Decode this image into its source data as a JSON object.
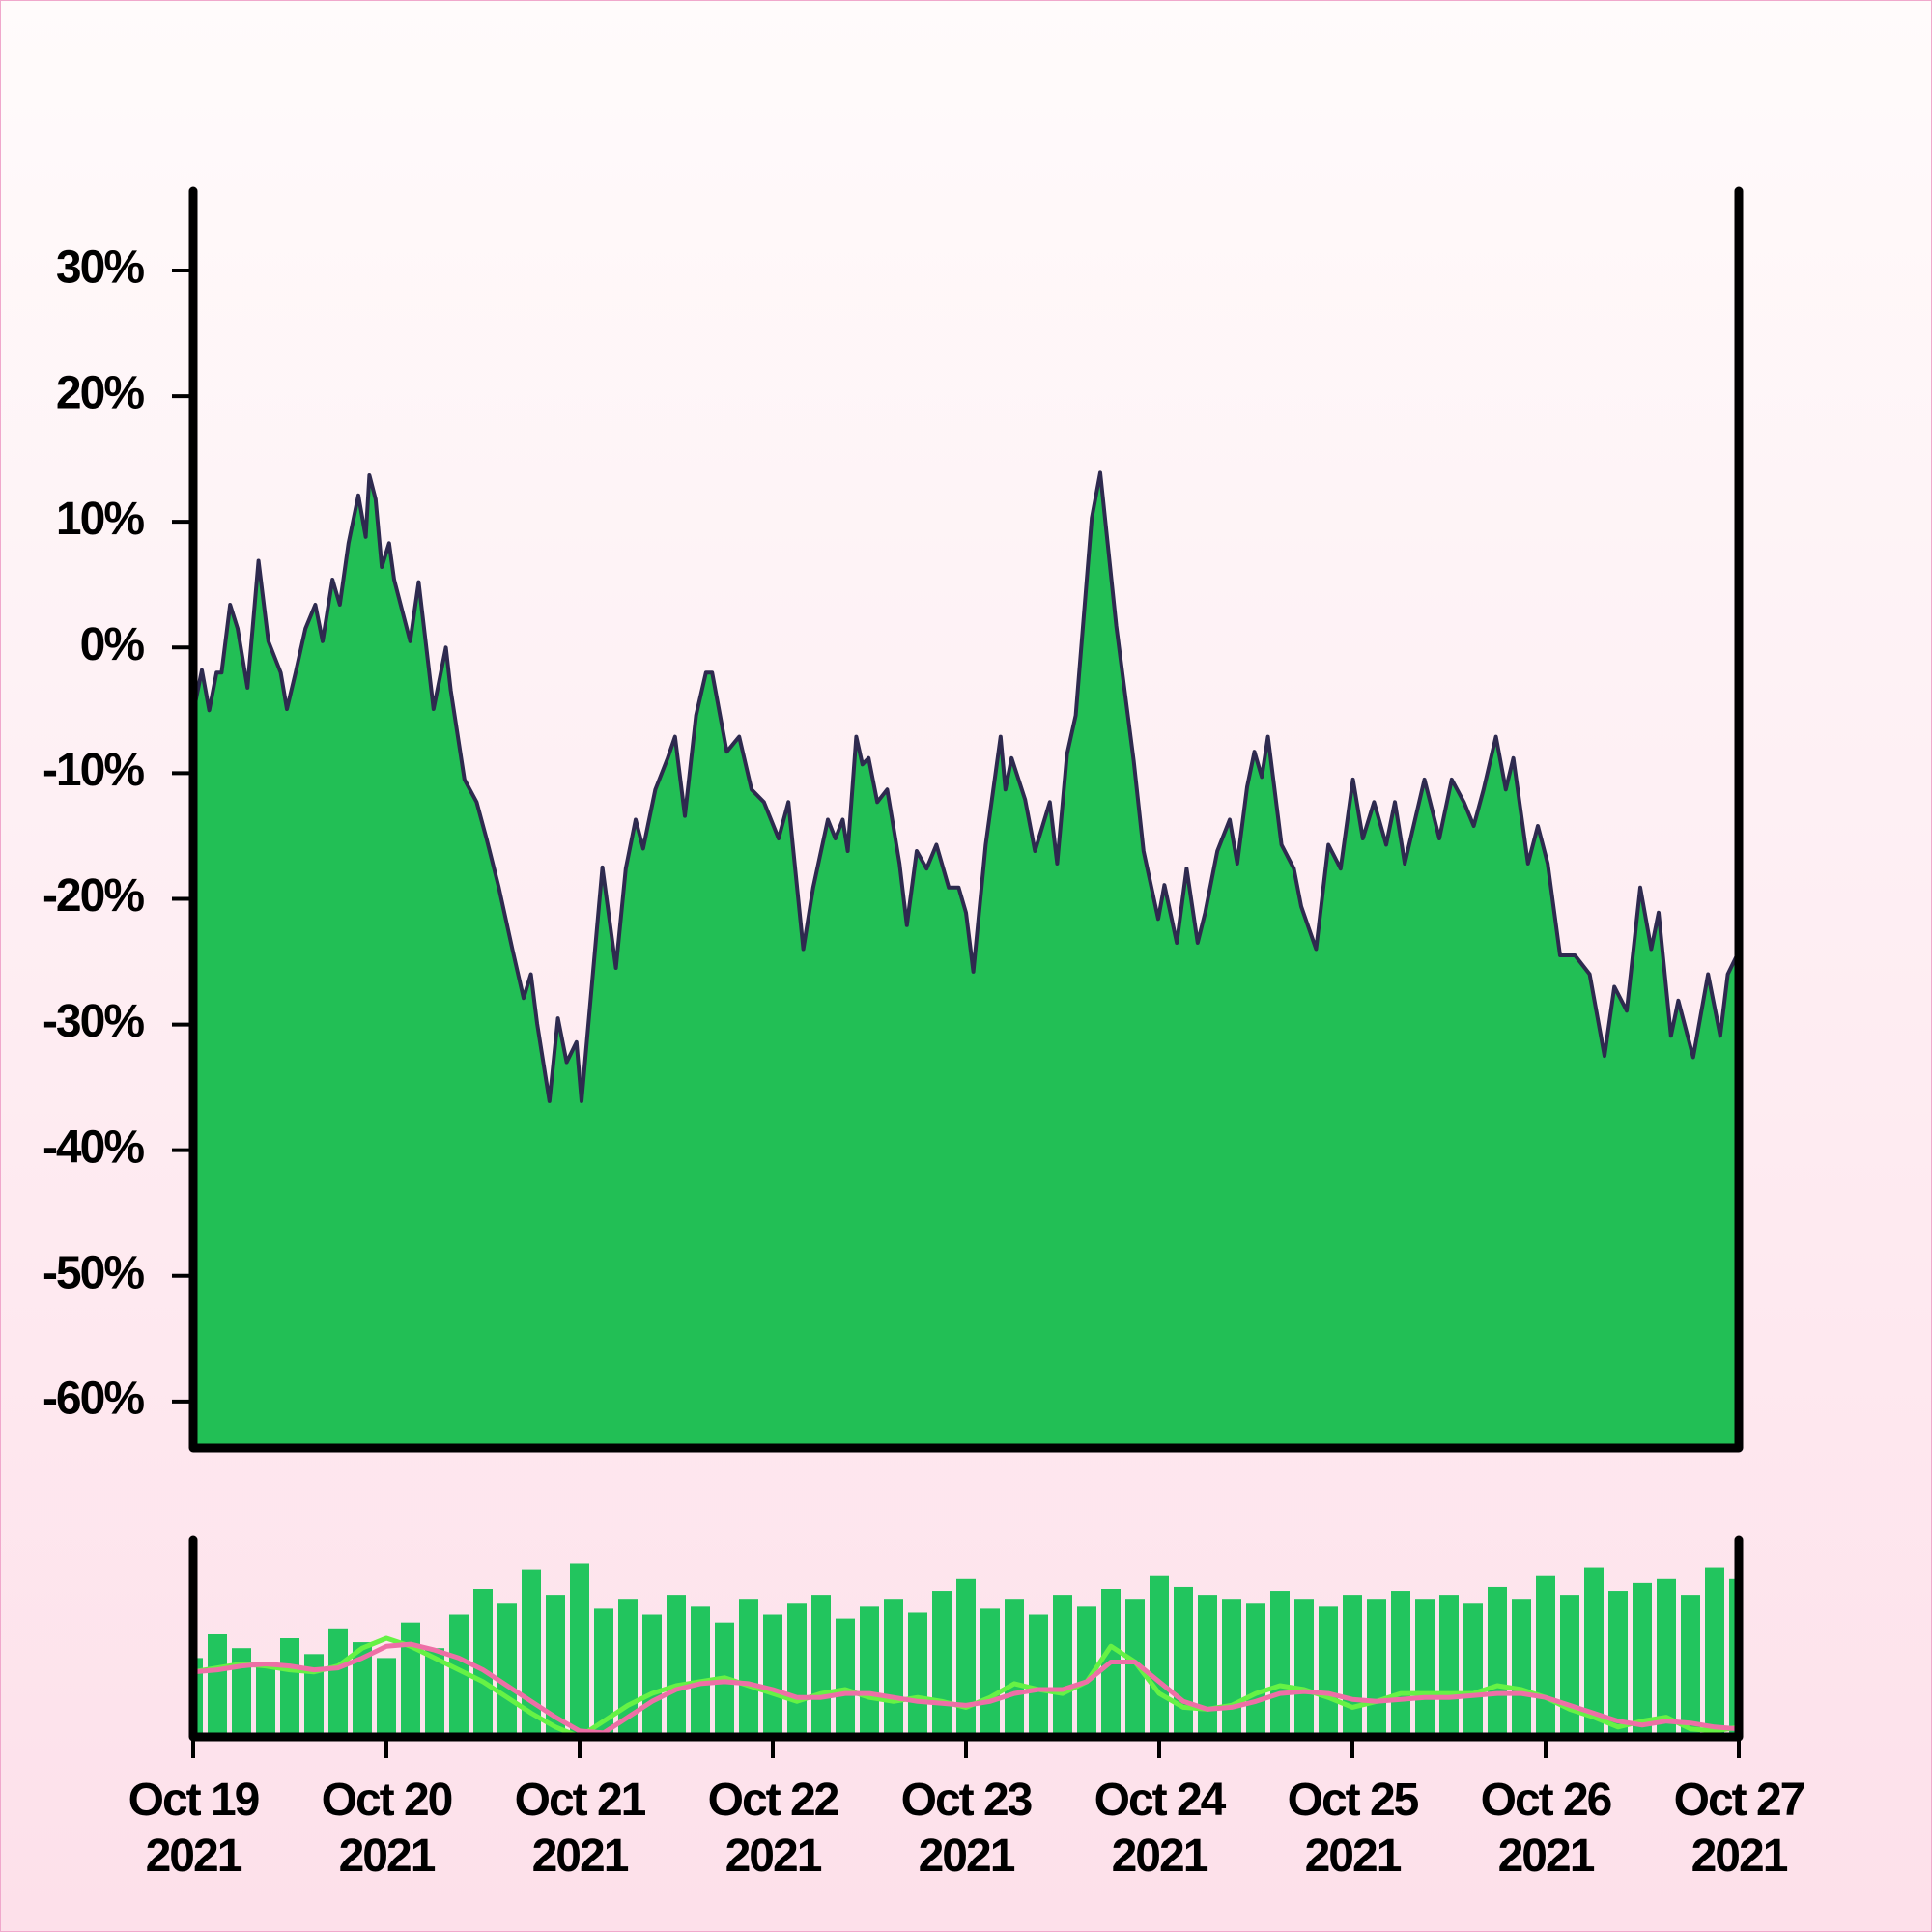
{
  "chart_data": [
    {
      "type": "area",
      "x": [
        0,
        0.045,
        0.083,
        0.121,
        0.147,
        0.191,
        0.23,
        0.281,
        0.338,
        0.389,
        0.453,
        0.485,
        0.53,
        0.581,
        0.632,
        0.67,
        0.721,
        0.759,
        0.804,
        0.855,
        0.893,
        0.912,
        0.944,
        0.976,
        1.014,
        1.04,
        1.123,
        1.167,
        1.244,
        1.308,
        1.333,
        1.404,
        1.467,
        1.518,
        1.582,
        1.652,
        1.71,
        1.748,
        1.78,
        1.844,
        1.888,
        1.933,
        1.984,
        2.01,
        2.118,
        2.188,
        2.239,
        2.29,
        2.329,
        2.392,
        2.456,
        2.494,
        2.545,
        2.603,
        2.654,
        2.686,
        2.762,
        2.826,
        2.89,
        2.954,
        3.03,
        3.081,
        3.158,
        3.209,
        3.285,
        3.324,
        3.362,
        3.388,
        3.432,
        3.464,
        3.496,
        3.541,
        3.592,
        3.656,
        3.694,
        3.745,
        3.796,
        3.847,
        3.911,
        3.962,
        4,
        4.038,
        4.102,
        4.179,
        4.204,
        4.236,
        4.306,
        4.357,
        4.434,
        4.472,
        4.523,
        4.568,
        4.651,
        4.695,
        4.778,
        4.868,
        4.919,
        4.995,
        5.027,
        5.091,
        5.142,
        5.199,
        5.238,
        5.301,
        5.365,
        5.404,
        5.455,
        5.493,
        5.531,
        5.563,
        5.633,
        5.697,
        5.735,
        5.812,
        5.876,
        5.939,
        6.003,
        6.054,
        6.112,
        6.175,
        6.22,
        6.271,
        6.373,
        6.45,
        6.514,
        6.577,
        6.628,
        6.679,
        6.743,
        6.794,
        6.833,
        6.909,
        6.96,
        7.011,
        7.075,
        7.152,
        7.228,
        7.305,
        7.356,
        7.42,
        7.49,
        7.547,
        7.585,
        7.649,
        7.687,
        7.764,
        7.841,
        7.904,
        7.943,
        8
      ],
      "values": [
        -5.2,
        -1.8,
        -5,
        -2,
        -2,
        3.4,
        1.5,
        -3.2,
        6.9,
        0.5,
        -2,
        -4.9,
        -2,
        1.5,
        3.4,
        0.5,
        5.4,
        3.4,
        8.3,
        12.1,
        8.8,
        13.7,
        11.8,
        6.4,
        8.3,
        5.4,
        0.5,
        5.2,
        -4.9,
        0,
        -3.4,
        -10.5,
        -12.3,
        -15.2,
        -19.1,
        -24,
        -27.9,
        -26,
        -29.9,
        -36.1,
        -29.5,
        -33,
        -31.4,
        -36.1,
        -17.5,
        -25.5,
        -17.6,
        -13.7,
        -16,
        -11.3,
        -8.8,
        -7.1,
        -13.4,
        -5.4,
        -2,
        -2,
        -8.3,
        -7.1,
        -11.3,
        -12.3,
        -15.2,
        -12.3,
        -24,
        -19.1,
        -13.7,
        -15.2,
        -13.7,
        -16.2,
        -7.1,
        -9.3,
        -8.8,
        -12.3,
        -11.3,
        -17.2,
        -22.1,
        -16.2,
        -17.6,
        -15.7,
        -19.1,
        -19.1,
        -21.1,
        -25.8,
        -15.7,
        -7.1,
        -11.3,
        -8.8,
        -12.1,
        -16.2,
        -12.3,
        -17.2,
        -8.5,
        -5.4,
        10.3,
        13.9,
        1.7,
        -9,
        -16.2,
        -21.6,
        -18.9,
        -23.5,
        -17.6,
        -23.5,
        -21.1,
        -16.2,
        -13.7,
        -17.2,
        -11.1,
        -8.3,
        -10.3,
        -7.1,
        -15.7,
        -17.6,
        -20.6,
        -24,
        -15.7,
        -17.6,
        -10.5,
        -15.2,
        -12.3,
        -15.7,
        -12.3,
        -17.2,
        -10.5,
        -15.2,
        -10.5,
        -12.3,
        -14.2,
        -11.3,
        -7.1,
        -11.3,
        -8.8,
        -17.2,
        -14.2,
        -17.2,
        -24.5,
        -24.5,
        -26,
        -32.5,
        -27,
        -28.9,
        -19.1,
        -24,
        -21.1,
        -30.9,
        -28.1,
        -32.6,
        -26,
        -30.9,
        -26,
        -24.2
      ],
      "color": "#22bf55",
      "line_color": "#2e2a4f",
      "xlim": [
        0,
        8
      ],
      "ylim": [
        -63.7,
        36.3
      ],
      "yticks": [
        {
          "value": 30,
          "label": "30%"
        },
        {
          "value": 20,
          "label": "20%"
        },
        {
          "value": 10,
          "label": "10%"
        },
        {
          "value": 0,
          "label": "0%"
        },
        {
          "value": -10,
          "label": "-10%"
        },
        {
          "value": -20,
          "label": "-20%"
        },
        {
          "value": -30,
          "label": "-30%"
        },
        {
          "value": -40,
          "label": "-40%"
        },
        {
          "value": -50,
          "label": "-50%"
        },
        {
          "value": -60,
          "label": "-60%"
        }
      ]
    },
    {
      "type": "bar",
      "x": [
        0,
        0.125,
        0.25,
        0.375,
        0.5,
        0.625,
        0.75,
        0.875,
        1,
        1.125,
        1.25,
        1.375,
        1.5,
        1.625,
        1.75,
        1.875,
        2,
        2.125,
        2.25,
        2.375,
        2.5,
        2.625,
        2.75,
        2.875,
        3,
        3.125,
        3.25,
        3.375,
        3.5,
        3.625,
        3.75,
        3.875,
        4,
        4.125,
        4.25,
        4.375,
        4.5,
        4.625,
        4.75,
        4.875,
        5,
        5.125,
        5.25,
        5.375,
        5.5,
        5.625,
        5.75,
        5.875,
        6,
        6.125,
        6.25,
        6.375,
        6.5,
        6.625,
        6.75,
        6.875,
        7,
        7.125,
        7.25,
        7.375,
        7.5,
        7.625,
        7.75,
        7.875,
        8
      ],
      "series": [
        {
          "type": "bar",
          "color": "#22c55e",
          "values": [
            40,
            52,
            45,
            38,
            50,
            42,
            55,
            48,
            40,
            58,
            45,
            62,
            75,
            68,
            85,
            72,
            88,
            65,
            70,
            62,
            72,
            66,
            58,
            70,
            62,
            68,
            72,
            60,
            66,
            70,
            63,
            74,
            80,
            65,
            70,
            62,
            72,
            66,
            75,
            70,
            82,
            76,
            72,
            70,
            68,
            74,
            70,
            66,
            72,
            70,
            74,
            70,
            72,
            68,
            76,
            70,
            82,
            72,
            86,
            74,
            78,
            80,
            72,
            86,
            80
          ]
        },
        {
          "type": "line",
          "color": "#66f245",
          "values": [
            33,
            35,
            37,
            36,
            34,
            33,
            36,
            45,
            50,
            46,
            40,
            34,
            28,
            20,
            12,
            5,
            0,
            8,
            16,
            22,
            26,
            28,
            30,
            26,
            22,
            18,
            22,
            24,
            20,
            18,
            20,
            18,
            15,
            20,
            27,
            24,
            22,
            28,
            46,
            38,
            22,
            15,
            14,
            16,
            22,
            26,
            24,
            20,
            15,
            18,
            22,
            22,
            22,
            22,
            26,
            24,
            20,
            14,
            10,
            5,
            8,
            10,
            4,
            3,
            5
          ]
        },
        {
          "type": "line",
          "color": "#ee6fa6",
          "values": [
            33,
            34,
            36,
            37,
            36,
            34,
            35,
            40,
            46,
            47,
            44,
            40,
            34,
            26,
            18,
            10,
            3,
            2,
            10,
            18,
            24,
            27,
            28,
            27,
            24,
            20,
            20,
            22,
            22,
            20,
            18,
            17,
            16,
            18,
            22,
            24,
            24,
            28,
            38,
            38,
            28,
            18,
            14,
            15,
            18,
            22,
            23,
            22,
            19,
            18,
            19,
            20,
            20,
            21,
            22,
            22,
            20,
            16,
            12,
            8,
            6,
            8,
            7,
            5,
            4
          ]
        }
      ],
      "xlim": [
        0,
        8
      ],
      "ylim": [
        0,
        100
      ],
      "xticks": [
        {
          "value": 0,
          "label": "Oct 19\n2021"
        },
        {
          "value": 1,
          "label": "Oct 20\n2021"
        },
        {
          "value": 2,
          "label": "Oct 21\n2021"
        },
        {
          "value": 3,
          "label": "Oct 22\n2021"
        },
        {
          "value": 4,
          "label": "Oct 23\n2021"
        },
        {
          "value": 5,
          "label": "Oct 24\n2021"
        },
        {
          "value": 6,
          "label": "Oct 25\n2021"
        },
        {
          "value": 7,
          "label": "Oct 26\n2021"
        },
        {
          "value": 8,
          "label": "Oct 27\n2021"
        }
      ]
    }
  ]
}
